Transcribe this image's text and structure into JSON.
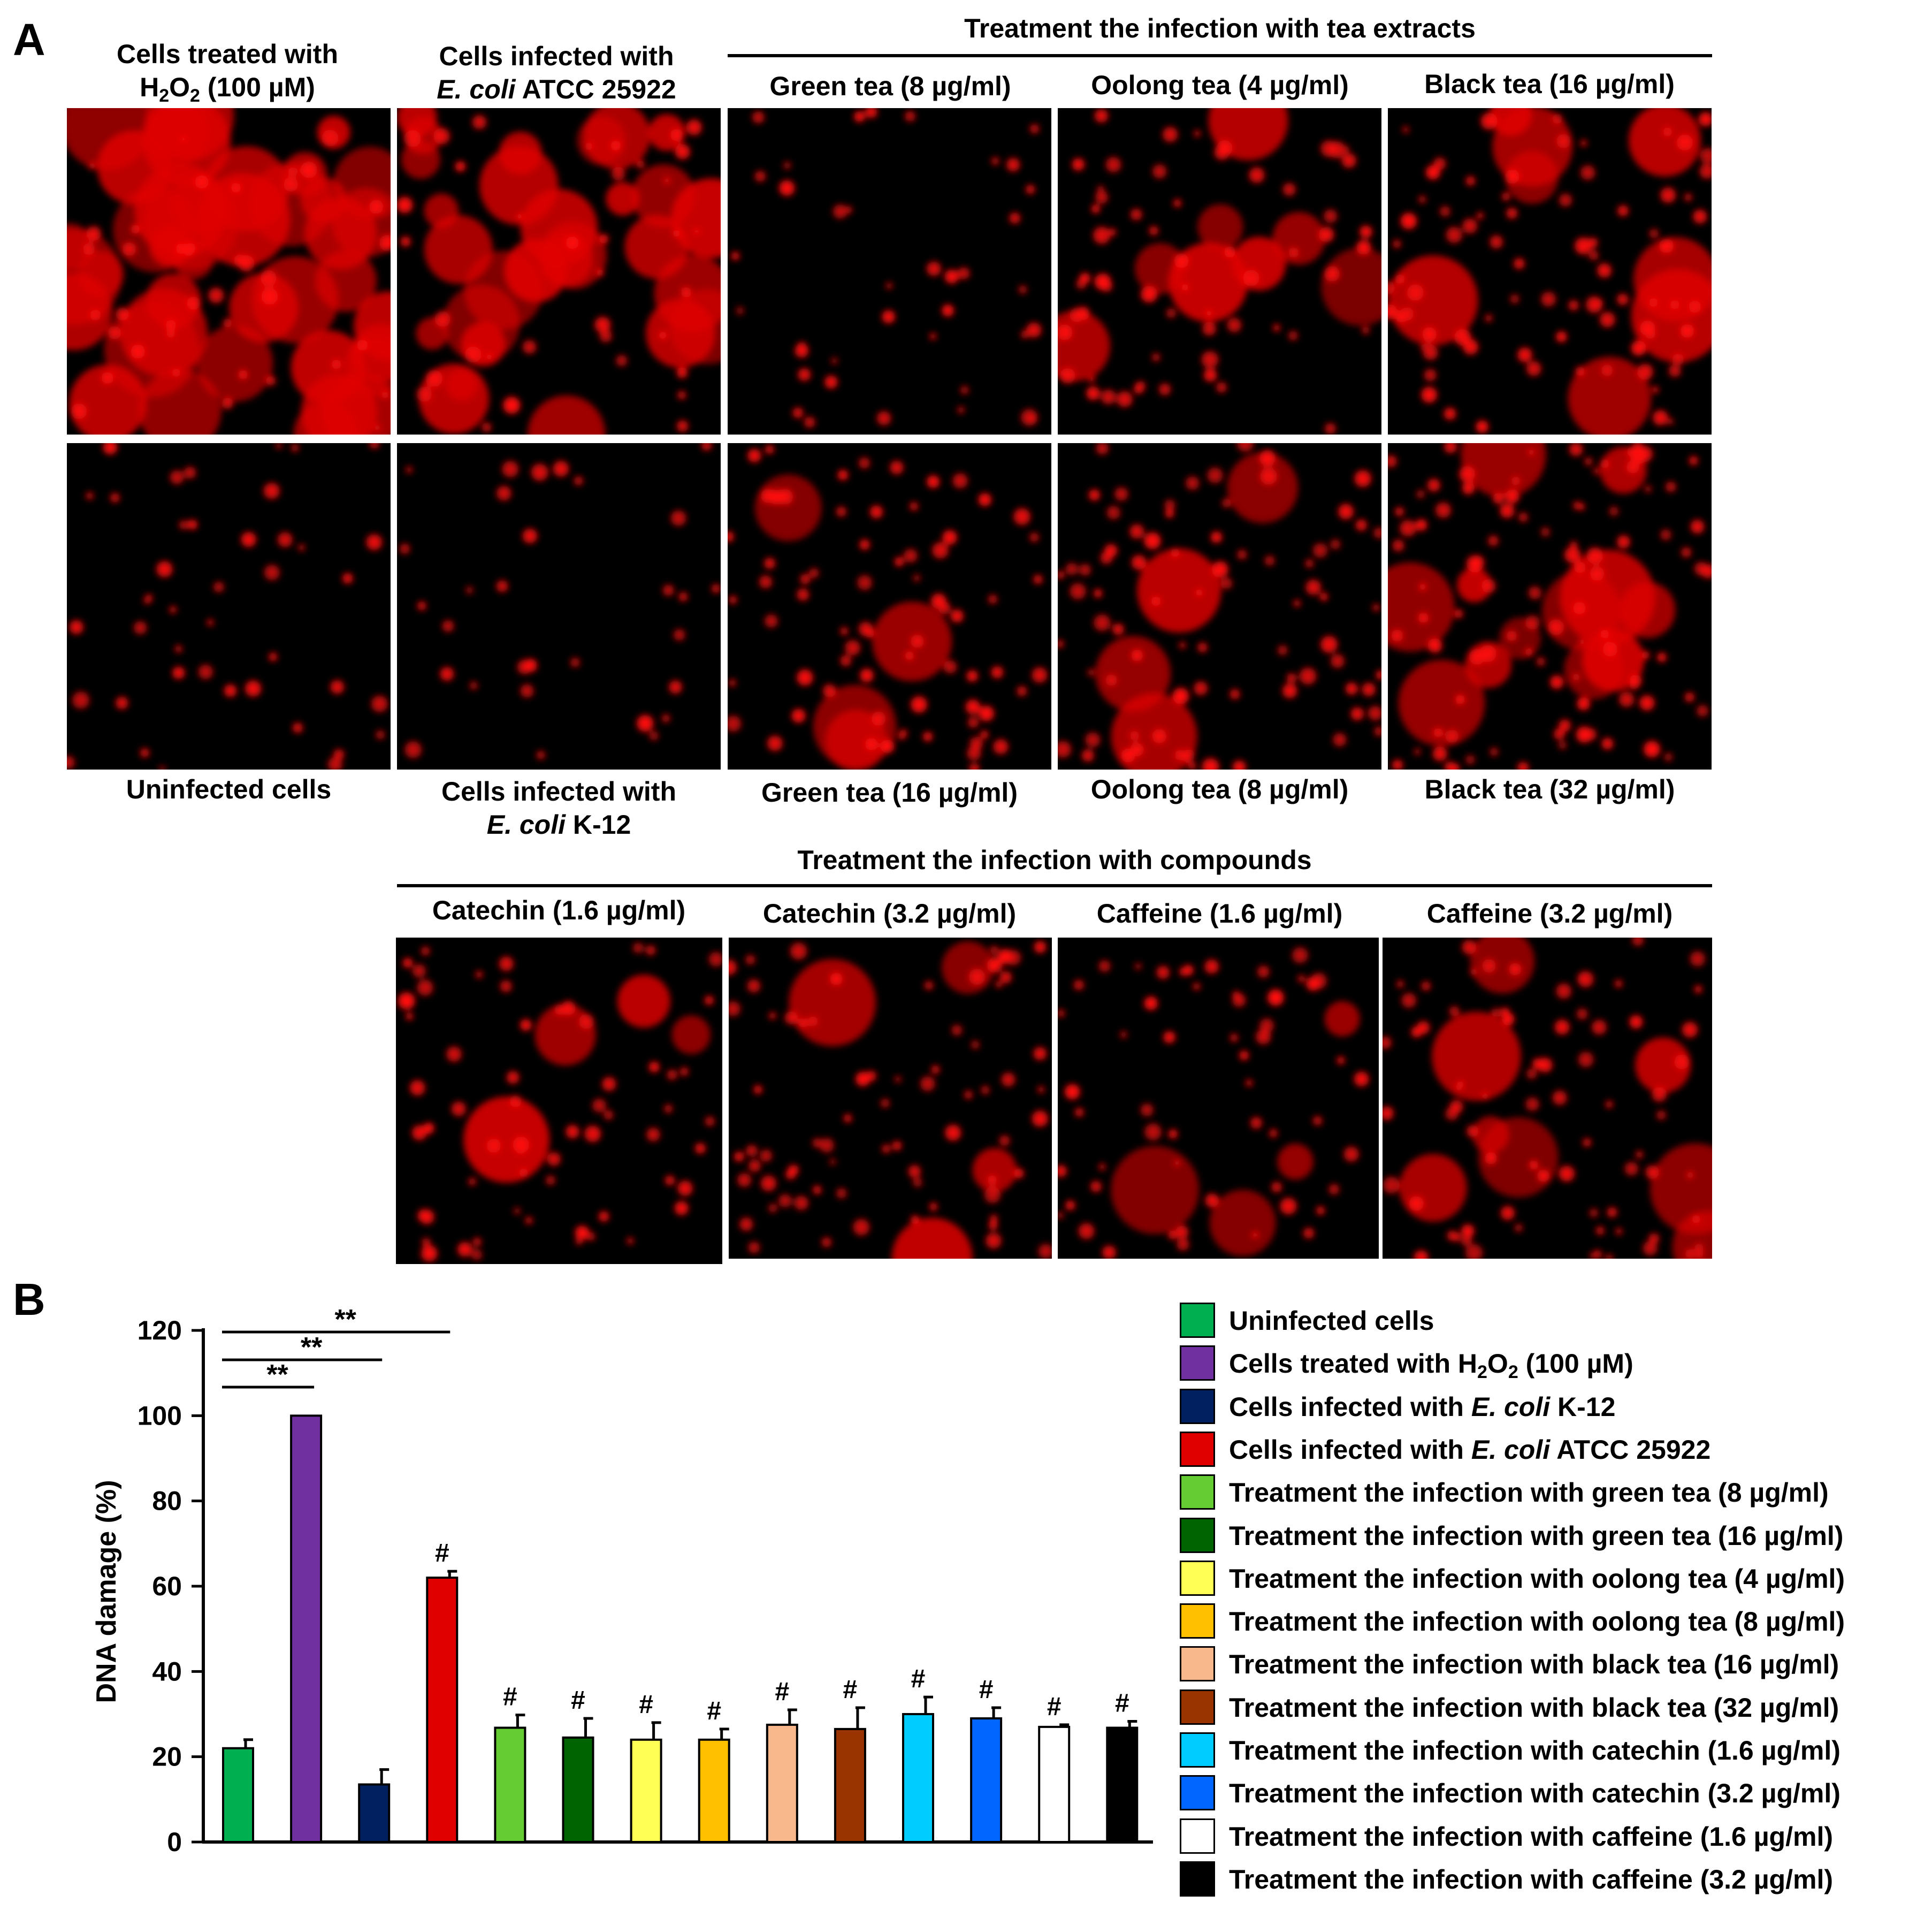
{
  "panel_a": {
    "letter": "A",
    "group_tea": "Treatment the infection with tea extracts",
    "group_compounds": "Treatment the infection with compounds",
    "labels": {
      "h2o2_line1": "Cells treated with",
      "h2o2_line2": "H",
      "h2o2_sub1": "2",
      "h2o2_mid": "O",
      "h2o2_sub2": "2",
      "h2o2_rest": " (100 µM)",
      "atcc_line1": "Cells infected with",
      "atcc_italic": "E. coli",
      "atcc_rest": " ATCC 25922",
      "green8": "Green tea (8 µg/ml)",
      "oolong4": "Oolong tea (4 µg/ml)",
      "black16": "Black tea (16 µg/ml)",
      "uninfected": "Uninfected cells",
      "k12_line1": "Cells infected with",
      "k12_italic": "E. coli",
      "k12_rest": " K-12",
      "green16": "Green tea (16 µg/ml)",
      "oolong8": "Oolong tea (8 µg/ml)",
      "black32": "Black tea (32 µg/ml)",
      "catechin16": "Catechin (1.6 µg/ml)",
      "catechin32": "Catechin (3.2 µg/ml)",
      "caffeine16": "Caffeine (1.6 µg/ml)",
      "caffeine32": "Caffeine (3.2 µg/ml)"
    }
  },
  "panel_b": {
    "letter": "B"
  },
  "chart_data": {
    "type": "bar",
    "ylabel": "DNA damage (%)",
    "ylim": [
      0,
      120
    ],
    "yticks": [
      "0",
      "20",
      "40",
      "60",
      "80",
      "100",
      "120"
    ],
    "categories": [
      "Uninfected cells",
      "Cells treated with H2O2 (100 µM)",
      "Cells infected with E. coli K-12",
      "Cells infected with E. coli ATCC 25922",
      "Treatment the infection with green tea (8 µg/ml)",
      "Treatment the infection with green tea (16 µg/ml)",
      "Treatment the infection with oolong tea (4 µg/ml)",
      "Treatment the infection with oolong tea (8 µg/ml)",
      "Treatment the infection with black tea (16 µg/ml)",
      "Treatment the infection with black tea (32 µg/ml)",
      "Treatment the infection with catechin (1.6 µg/ml)",
      "Treatment the infection with catechin (3.2 µg/ml)",
      "Treatment the infection with caffeine (1.6 µg/ml)",
      "Treatment the infection with caffeine (3.2 µg/ml)"
    ],
    "values": [
      22,
      100,
      13.5,
      62,
      26.8,
      24.5,
      24,
      24,
      27.5,
      26.5,
      30,
      29,
      27,
      26.8
    ],
    "errors": [
      2,
      0,
      3.5,
      1.5,
      3,
      4.5,
      4,
      2.5,
      3.5,
      5,
      4,
      2.5,
      0.5,
      1.5
    ],
    "colors": [
      "#00b050",
      "#7030a0",
      "#002060",
      "#e00000",
      "#66cc33",
      "#006400",
      "#ffff55",
      "#ffc000",
      "#f8b88b",
      "#993300",
      "#00ccff",
      "#0066ff",
      "#ffffff",
      "#000000"
    ],
    "annotations": [
      "",
      "",
      "",
      "#",
      "#",
      "#",
      "#",
      "#",
      "#",
      "#",
      "#",
      "#",
      "#",
      "#"
    ],
    "significance": [
      {
        "from": 0,
        "to": 1,
        "label": "**"
      },
      {
        "from": 0,
        "to": 2,
        "label": "**"
      },
      {
        "from": 0,
        "to": 3,
        "label": "**"
      }
    ],
    "legend_position": "right",
    "legend": [
      {
        "text": "Uninfected cells"
      },
      {
        "text": "Cells treated with H",
        "sub1": "2",
        "mid": "O",
        "sub2": "2",
        "rest": " (100 µM)"
      },
      {
        "text": "Cells infected with ",
        "italic": "E. coli",
        "rest": " K-12"
      },
      {
        "text": "Cells infected with ",
        "italic": "E. coli",
        "rest": " ATCC 25922"
      },
      {
        "text": "Treatment the infection with green tea (8 µg/ml)"
      },
      {
        "text": "Treatment the infection with green tea (16 µg/ml)"
      },
      {
        "text": "Treatment the infection with oolong tea (4 µg/ml)"
      },
      {
        "text": "Treatment the infection with oolong tea (8 µg/ml)"
      },
      {
        "text": "Treatment the infection with black tea (16 µg/ml)"
      },
      {
        "text": "Treatment the infection with black tea (32 µg/ml)"
      },
      {
        "text": "Treatment the infection with catechin (1.6 µg/ml)"
      },
      {
        "text": "Treatment the infection with catechin (3.2 µg/ml)"
      },
      {
        "text": "Treatment the infection with caffeine (1.6 µg/ml)"
      },
      {
        "text": "Treatment the infection with caffeine (3.2 µg/ml)"
      }
    ]
  }
}
